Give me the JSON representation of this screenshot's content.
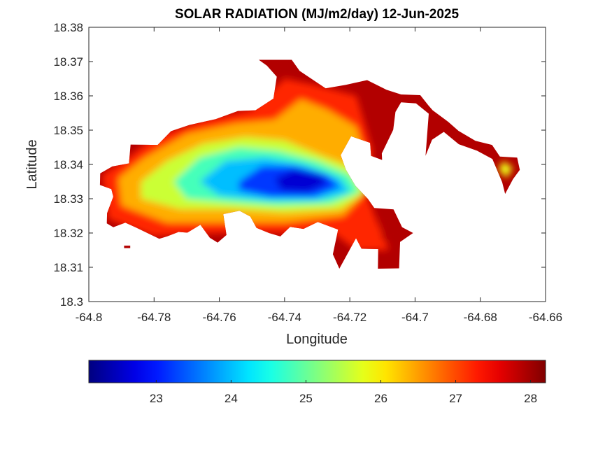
{
  "chart_data": {
    "type": "heatmap",
    "title": "SOLAR RADIATION (MJ/m2/day) 12-Jun-2025",
    "xlabel": "Longitude",
    "ylabel": "Latitude",
    "xlim": [
      -64.8,
      -64.66
    ],
    "ylim": [
      18.3,
      18.38
    ],
    "xticks": [
      "-64.8",
      "-64.78",
      "-64.76",
      "-64.74",
      "-64.72",
      "-64.7",
      "-64.68",
      "-64.66"
    ],
    "yticks": [
      "18.3",
      "18.31",
      "18.32",
      "18.33",
      "18.34",
      "18.35",
      "18.36",
      "18.37",
      "18.38"
    ],
    "grid": false,
    "colormap": "jet",
    "colorbar": {
      "location": "bottom",
      "range": [
        22.1,
        28.2
      ],
      "ticks": [
        "23",
        "24",
        "25",
        "26",
        "27",
        "28"
      ]
    },
    "land_outline": [
      [
        -64.7965,
        18.3374
      ],
      [
        -64.7928,
        18.3394
      ],
      [
        -64.7877,
        18.3403
      ],
      [
        -64.7872,
        18.3458
      ],
      [
        -64.7789,
        18.3457
      ],
      [
        -64.7748,
        18.3497
      ],
      [
        -64.7692,
        18.3515
      ],
      [
        -64.7611,
        18.3532
      ],
      [
        -64.7543,
        18.3556
      ],
      [
        -64.7489,
        18.3558
      ],
      [
        -64.7434,
        18.3592
      ],
      [
        -64.7424,
        18.3656
      ],
      [
        -64.7454,
        18.3688
      ],
      [
        -64.7479,
        18.3705
      ],
      [
        -64.7378,
        18.3705
      ],
      [
        -64.7354,
        18.3673
      ],
      [
        -64.7274,
        18.3622
      ],
      [
        -64.7212,
        18.3632
      ],
      [
        -64.7147,
        18.3646
      ],
      [
        -64.7088,
        18.3618
      ],
      [
        -64.7043,
        18.3604
      ],
      [
        -64.6984,
        18.3602
      ],
      [
        -64.6959,
        18.3572
      ],
      [
        -64.6946,
        18.3558
      ],
      [
        -64.6898,
        18.3524
      ],
      [
        -64.6867,
        18.3498
      ],
      [
        -64.6815,
        18.3469
      ],
      [
        -64.6764,
        18.3457
      ],
      [
        -64.674,
        18.3423
      ],
      [
        -64.6687,
        18.342
      ],
      [
        -64.6679,
        18.3384
      ],
      [
        -64.67,
        18.3357
      ],
      [
        -64.6724,
        18.3314
      ],
      [
        -64.6733,
        18.3348
      ],
      [
        -64.6763,
        18.3416
      ],
      [
        -64.681,
        18.344
      ],
      [
        -64.6866,
        18.3459
      ],
      [
        -64.6912,
        18.3495
      ],
      [
        -64.6948,
        18.3472
      ],
      [
        -64.6968,
        18.3425
      ],
      [
        -64.6958,
        18.3548
      ],
      [
        -64.6997,
        18.3578
      ],
      [
        -64.7043,
        18.3581
      ],
      [
        -64.706,
        18.3553
      ],
      [
        -64.7067,
        18.3501
      ],
      [
        -64.7102,
        18.3432
      ],
      [
        -64.7101,
        18.3413
      ],
      [
        -64.7135,
        18.3425
      ],
      [
        -64.7138,
        18.3463
      ],
      [
        -64.7196,
        18.3482
      ],
      [
        -64.7228,
        18.3427
      ],
      [
        -64.7212,
        18.3385
      ],
      [
        -64.7183,
        18.3338
      ],
      [
        -64.7145,
        18.33
      ],
      [
        -64.7125,
        18.3273
      ],
      [
        -64.7066,
        18.3269
      ],
      [
        -64.704,
        18.3217
      ],
      [
        -64.7006,
        18.32
      ],
      [
        -64.7046,
        18.3174
      ],
      [
        -64.7049,
        18.3097
      ],
      [
        -64.7114,
        18.3096
      ],
      [
        -64.7113,
        18.3153
      ],
      [
        -64.7164,
        18.3154
      ],
      [
        -64.7181,
        18.3185
      ],
      [
        -64.7232,
        18.3096
      ],
      [
        -64.7252,
        18.3138
      ],
      [
        -64.7236,
        18.321
      ],
      [
        -64.7298,
        18.3232
      ],
      [
        -64.7342,
        18.3212
      ],
      [
        -64.7383,
        18.3218
      ],
      [
        -64.7413,
        18.319
      ],
      [
        -64.7448,
        18.32
      ],
      [
        -64.7486,
        18.3215
      ],
      [
        -64.7505,
        18.3248
      ],
      [
        -64.7538,
        18.3265
      ],
      [
        -64.7588,
        18.3255
      ],
      [
        -64.7578,
        18.3194
      ],
      [
        -64.7605,
        18.3172
      ],
      [
        -64.7629,
        18.3186
      ],
      [
        -64.7658,
        18.3224
      ],
      [
        -64.7698,
        18.3201
      ],
      [
        -64.7725,
        18.3203
      ],
      [
        -64.776,
        18.319
      ],
      [
        -64.7784,
        18.3183
      ],
      [
        -64.7855,
        18.3216
      ],
      [
        -64.7888,
        18.323
      ],
      [
        -64.7925,
        18.3217
      ],
      [
        -64.7945,
        18.3228
      ],
      [
        -64.7944,
        18.3258
      ],
      [
        -64.7925,
        18.3306
      ],
      [
        -64.7931,
        18.3328
      ],
      [
        -64.7966,
        18.334
      ],
      [
        -64.7965,
        18.3374
      ]
    ],
    "islets": [
      [
        [
          -64.7892,
          18.3163
        ],
        [
          -64.7873,
          18.3163
        ],
        [
          -64.7873,
          18.3156
        ],
        [
          -64.7892,
          18.3156
        ],
        [
          -64.7892,
          18.3163
        ]
      ]
    ],
    "contour_bands": [
      {
        "value": 27.2,
        "points": [
          [
            -64.796,
            18.337
          ],
          [
            -64.788,
            18.342
          ],
          [
            -64.78,
            18.348
          ],
          [
            -64.765,
            18.353
          ],
          [
            -64.75,
            18.356
          ],
          [
            -64.74,
            18.365
          ],
          [
            -64.73,
            18.363
          ],
          [
            -64.718,
            18.36
          ],
          [
            -64.713,
            18.344
          ],
          [
            -64.715,
            18.332
          ],
          [
            -64.712,
            18.324
          ],
          [
            -64.708,
            18.315
          ],
          [
            -64.718,
            18.315
          ],
          [
            -64.725,
            18.32
          ],
          [
            -64.74,
            18.32
          ],
          [
            -64.76,
            18.32
          ],
          [
            -64.78,
            18.319
          ],
          [
            -64.794,
            18.324
          ],
          [
            -64.796,
            18.337
          ]
        ]
      },
      {
        "value": 26.4,
        "points": [
          [
            -64.791,
            18.336
          ],
          [
            -64.783,
            18.342
          ],
          [
            -64.77,
            18.349
          ],
          [
            -64.755,
            18.352
          ],
          [
            -64.743,
            18.353
          ],
          [
            -64.735,
            18.359
          ],
          [
            -64.727,
            18.356
          ],
          [
            -64.718,
            18.351
          ],
          [
            -64.714,
            18.338
          ],
          [
            -64.717,
            18.33
          ],
          [
            -64.722,
            18.325
          ],
          [
            -64.74,
            18.323
          ],
          [
            -64.76,
            18.323
          ],
          [
            -64.776,
            18.323
          ],
          [
            -64.79,
            18.328
          ],
          [
            -64.791,
            18.336
          ]
        ]
      },
      {
        "value": 25.6,
        "points": [
          [
            -64.784,
            18.335
          ],
          [
            -64.776,
            18.341
          ],
          [
            -64.765,
            18.346
          ],
          [
            -64.752,
            18.348
          ],
          [
            -64.74,
            18.347
          ],
          [
            -64.73,
            18.343
          ],
          [
            -64.719,
            18.339
          ],
          [
            -64.715,
            18.332
          ],
          [
            -64.723,
            18.327
          ],
          [
            -64.74,
            18.326
          ],
          [
            -64.756,
            18.327
          ],
          [
            -64.772,
            18.327
          ],
          [
            -64.784,
            18.33
          ],
          [
            -64.784,
            18.335
          ]
        ]
      },
      {
        "value": 24.8,
        "points": [
          [
            -64.774,
            18.335
          ],
          [
            -64.766,
            18.342
          ],
          [
            -64.754,
            18.345
          ],
          [
            -64.742,
            18.344
          ],
          [
            -64.73,
            18.341
          ],
          [
            -64.72,
            18.337
          ],
          [
            -64.717,
            18.332
          ],
          [
            -64.726,
            18.3285
          ],
          [
            -64.742,
            18.328
          ],
          [
            -64.758,
            18.329
          ],
          [
            -64.77,
            18.33
          ],
          [
            -64.774,
            18.335
          ]
        ]
      },
      {
        "value": 24.0,
        "points": [
          [
            -64.766,
            18.335
          ],
          [
            -64.758,
            18.341
          ],
          [
            -64.746,
            18.342
          ],
          [
            -64.734,
            18.34
          ],
          [
            -64.723,
            18.336
          ],
          [
            -64.72,
            18.332
          ],
          [
            -64.73,
            18.3295
          ],
          [
            -64.745,
            18.3295
          ],
          [
            -64.76,
            18.331
          ],
          [
            -64.766,
            18.335
          ]
        ]
      },
      {
        "value": 23.2,
        "points": [
          [
            -64.754,
            18.335
          ],
          [
            -64.747,
            18.3395
          ],
          [
            -64.737,
            18.3395
          ],
          [
            -64.727,
            18.337
          ],
          [
            -64.723,
            18.3335
          ],
          [
            -64.731,
            18.3305
          ],
          [
            -64.744,
            18.3305
          ],
          [
            -64.754,
            18.3325
          ],
          [
            -64.754,
            18.335
          ]
        ]
      },
      {
        "value": 22.6,
        "points": [
          [
            -64.743,
            18.336
          ],
          [
            -64.737,
            18.3385
          ],
          [
            -64.729,
            18.337
          ],
          [
            -64.727,
            18.3345
          ],
          [
            -64.733,
            18.332
          ],
          [
            -64.741,
            18.3325
          ],
          [
            -64.743,
            18.336
          ]
        ]
      },
      {
        "value": 27.9,
        "points": [
          [
            -64.711,
            18.325
          ],
          [
            -64.706,
            18.326
          ],
          [
            -64.702,
            18.321
          ],
          [
            -64.704,
            18.317
          ],
          [
            -64.71,
            18.318
          ],
          [
            -64.711,
            18.325
          ]
        ]
      },
      {
        "value": 27.9,
        "points": [
          [
            -64.747,
            18.37
          ],
          [
            -64.739,
            18.37
          ],
          [
            -64.735,
            18.367
          ],
          [
            -64.741,
            18.366
          ],
          [
            -64.747,
            18.37
          ]
        ]
      },
      {
        "value": 25.8,
        "points": [
          [
            -64.673,
            18.341
          ],
          [
            -64.67,
            18.339
          ],
          [
            -64.672,
            18.336
          ],
          [
            -64.6745,
            18.3385
          ],
          [
            -64.673,
            18.341
          ]
        ]
      }
    ]
  }
}
